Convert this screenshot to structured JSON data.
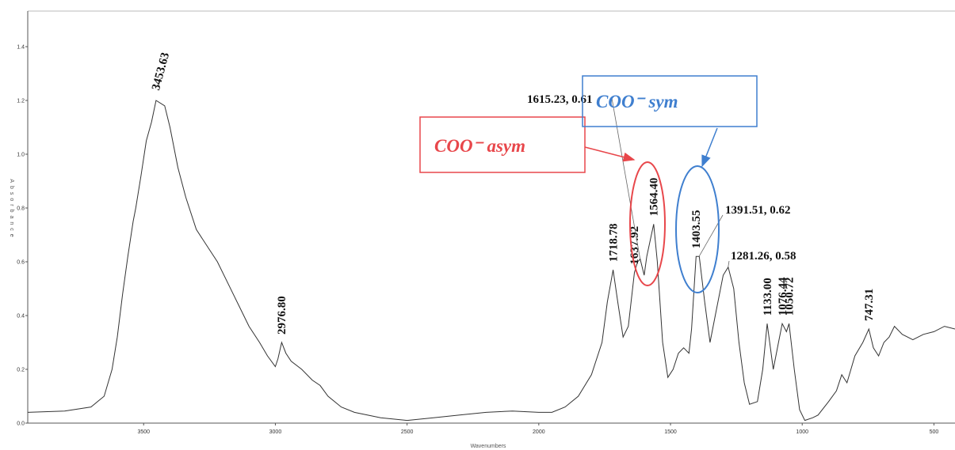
{
  "chart_data": {
    "type": "line",
    "x_label": "Wavenumbers",
    "y_label": "Absorbance",
    "xlim": [
      3940,
      420
    ],
    "xticks": [
      3500,
      3000,
      2500,
      2000,
      1500,
      1000,
      500
    ],
    "ylim": [
      0,
      1.5
    ],
    "yticks": [
      {
        "value": 0,
        "label": "0.0"
      },
      0.2,
      0.4,
      0.6,
      0.8,
      {
        "value": 1,
        "label": "1.0"
      },
      1.2,
      1.4
    ],
    "x": [
      3940,
      3800,
      3700,
      3650,
      3620,
      3600,
      3580,
      3560,
      3540,
      3530,
      3510,
      3490,
      3470,
      3453,
      3420,
      3400,
      3370,
      3340,
      3300,
      3260,
      3220,
      3180,
      3140,
      3100,
      3060,
      3030,
      3000,
      2990,
      2976,
      2960,
      2940,
      2900,
      2860,
      2830,
      2800,
      2750,
      2700,
      2600,
      2500,
      2400,
      2300,
      2200,
      2100,
      2000,
      1950,
      1900,
      1850,
      1800,
      1760,
      1740,
      1718,
      1700,
      1680,
      1660,
      1637,
      1625,
      1615,
      1600,
      1590,
      1564,
      1550,
      1530,
      1510,
      1490,
      1470,
      1450,
      1430,
      1420,
      1403,
      1391,
      1370,
      1350,
      1330,
      1300,
      1281,
      1260,
      1240,
      1220,
      1200,
      1170,
      1150,
      1133,
      1110,
      1090,
      1076,
      1060,
      1050,
      1030,
      1010,
      990,
      960,
      940,
      900,
      870,
      850,
      830,
      800,
      770,
      747,
      730,
      710,
      690,
      670,
      650,
      620,
      580,
      540,
      500,
      460,
      420
    ],
    "series": [
      {
        "color": "#333333",
        "values": [
          0.04,
          0.045,
          0.06,
          0.1,
          0.2,
          0.32,
          0.48,
          0.62,
          0.75,
          0.8,
          0.92,
          1.05,
          1.12,
          1.2,
          1.18,
          1.1,
          0.95,
          0.84,
          0.72,
          0.66,
          0.6,
          0.52,
          0.44,
          0.36,
          0.3,
          0.25,
          0.21,
          0.24,
          0.3,
          0.26,
          0.23,
          0.2,
          0.16,
          0.14,
          0.1,
          0.06,
          0.04,
          0.02,
          0.01,
          0.02,
          0.03,
          0.04,
          0.045,
          0.04,
          0.04,
          0.06,
          0.1,
          0.18,
          0.3,
          0.45,
          0.57,
          0.45,
          0.32,
          0.36,
          0.56,
          0.6,
          0.61,
          0.55,
          0.62,
          0.74,
          0.6,
          0.3,
          0.17,
          0.2,
          0.26,
          0.28,
          0.26,
          0.35,
          0.62,
          0.62,
          0.45,
          0.3,
          0.4,
          0.55,
          0.58,
          0.5,
          0.3,
          0.15,
          0.07,
          0.08,
          0.2,
          0.37,
          0.2,
          0.3,
          0.37,
          0.34,
          0.37,
          0.2,
          0.05,
          0.01,
          0.02,
          0.03,
          0.08,
          0.12,
          0.18,
          0.15,
          0.25,
          0.3,
          0.35,
          0.28,
          0.25,
          0.3,
          0.32,
          0.36,
          0.33,
          0.31,
          0.33,
          0.34,
          0.36,
          0.35
        ]
      }
    ],
    "annotations": [
      {
        "text": "3453.63",
        "x": 3453.63,
        "y": 1.2
      },
      {
        "text": "2976.80",
        "x": 2976.8,
        "y": 0.3
      },
      {
        "text": "1718.78",
        "x": 1718.78,
        "y": 0.57
      },
      {
        "text": "1637.92",
        "x": 1637.92,
        "y": 0.56
      },
      {
        "text": "1564.40",
        "x": 1564.4,
        "y": 0.74
      },
      {
        "text": "1403.55",
        "x": 1403.55,
        "y": 0.62
      },
      {
        "text": "1133.00",
        "x": 1133,
        "y": 0.37
      },
      {
        "text": "1076.44",
        "x": 1076.44,
        "y": 0.37
      },
      {
        "text": "1050.72",
        "x": 1050.72,
        "y": 0.37
      },
      {
        "text": "747.31",
        "x": 747.31,
        "y": 0.35
      },
      {
        "text": "1615.23, 0.61",
        "x": 1615.23,
        "y": 0.61
      },
      {
        "text": "1391.51, 0.62",
        "x": 1391.51,
        "y": 0.62
      },
      {
        "text": "1281.26, 0.58",
        "x": 1281.26,
        "y": 0.58
      }
    ],
    "callouts": [
      {
        "text": "COO⁻ asym",
        "color": "#e8474b"
      },
      {
        "text": "COO⁻ sym",
        "color": "#3f7fcf"
      }
    ]
  }
}
